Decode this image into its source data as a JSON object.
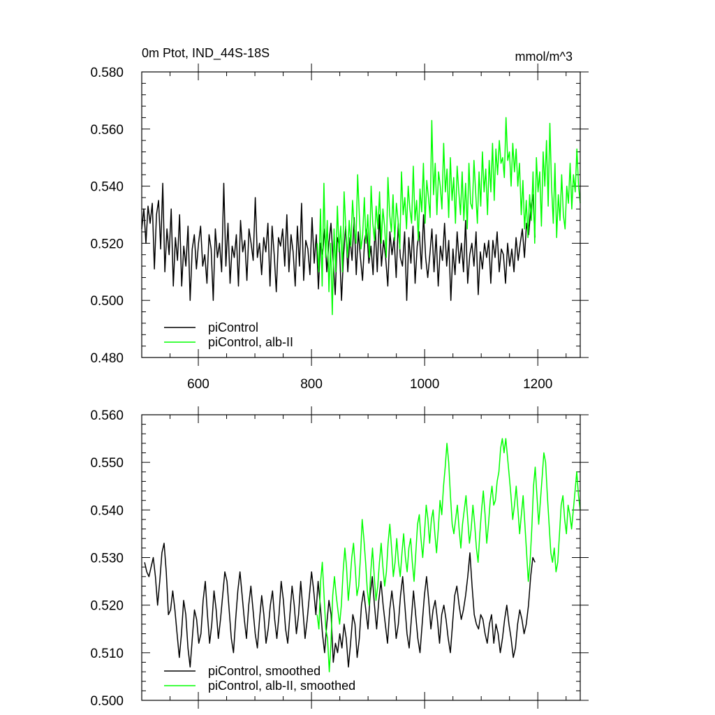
{
  "chart_data": [
    {
      "type": "line",
      "title": "0m Ptot, IND_44S-18S",
      "units": "mmol/m^3",
      "xlim": [
        500,
        1275
      ],
      "ylim": [
        0.48,
        0.58
      ],
      "xticks": [
        600,
        800,
        1000,
        1200
      ],
      "xtick_labels": [
        "600",
        "800",
        "1000",
        "1200"
      ],
      "yticks": [
        0.48,
        0.5,
        0.52,
        0.54,
        0.56,
        0.58
      ],
      "ytick_labels": [
        "0.480",
        "0.500",
        "0.520",
        "0.540",
        "0.560",
        "0.580"
      ],
      "legend_position": "bottom-left",
      "series": [
        {
          "name": "piControl",
          "color": "#000000",
          "x_start": 500,
          "x_end": 1195,
          "values": [
            0.525,
            0.532,
            0.52,
            0.533,
            0.527,
            0.534,
            0.511,
            0.53,
            0.535,
            0.518,
            0.541,
            0.51,
            0.525,
            0.516,
            0.532,
            0.505,
            0.522,
            0.514,
            0.53,
            0.505,
            0.519,
            0.512,
            0.526,
            0.5,
            0.518,
            0.523,
            0.511,
            0.52,
            0.526,
            0.512,
            0.516,
            0.506,
            0.523,
            0.518,
            0.5,
            0.525,
            0.515,
            0.52,
            0.51,
            0.541,
            0.512,
            0.527,
            0.506,
            0.519,
            0.515,
            0.523,
            0.505,
            0.528,
            0.517,
            0.521,
            0.507,
            0.525,
            0.52,
            0.514,
            0.536,
            0.515,
            0.52,
            0.509,
            0.522,
            0.517,
            0.527,
            0.505,
            0.526,
            0.516,
            0.503,
            0.522,
            0.519,
            0.525,
            0.512,
            0.53,
            0.51,
            0.523,
            0.517,
            0.505,
            0.526,
            0.512,
            0.534,
            0.507,
            0.521,
            0.518,
            0.509,
            0.529,
            0.513,
            0.523,
            0.504,
            0.52,
            0.516,
            0.525,
            0.51,
            0.52,
            0.527,
            0.514,
            0.502,
            0.522,
            0.519,
            0.5,
            0.516,
            0.526,
            0.51,
            0.522,
            0.514,
            0.529,
            0.509,
            0.524,
            0.515,
            0.507,
            0.521,
            0.525,
            0.513,
            0.519,
            0.509,
            0.526,
            0.51,
            0.53,
            0.512,
            0.521,
            0.515,
            0.505,
            0.524,
            0.516,
            0.522,
            0.508,
            0.527,
            0.515,
            0.512,
            0.524,
            0.5,
            0.522,
            0.513,
            0.526,
            0.506,
            0.519,
            0.524,
            0.511,
            0.53,
            0.515,
            0.508,
            0.516,
            0.525,
            0.51,
            0.523,
            0.505,
            0.519,
            0.514,
            0.527,
            0.512,
            0.521,
            0.5,
            0.518,
            0.509,
            0.524,
            0.513,
            0.52,
            0.51,
            0.528,
            0.506,
            0.516,
            0.52,
            0.512,
            0.524,
            0.502,
            0.517,
            0.511,
            0.52,
            0.515,
            0.521,
            0.506,
            0.521,
            0.515,
            0.524,
            0.51,
            0.518,
            0.516,
            0.506,
            0.52,
            0.512,
            0.518,
            0.51,
            0.522,
            0.514,
            0.52,
            0.525,
            0.515,
            0.527,
            0.523,
            0.532,
            0.537,
            0.522
          ]
        },
        {
          "name": "piControl, alb-II",
          "color": "#00ff00",
          "x_start": 810,
          "x_end": 1275,
          "values": [
            0.52,
            0.51,
            0.532,
            0.505,
            0.541,
            0.515,
            0.528,
            0.503,
            0.52,
            0.495,
            0.525,
            0.51,
            0.533,
            0.517,
            0.526,
            0.51,
            0.538,
            0.525,
            0.515,
            0.528,
            0.519,
            0.535,
            0.526,
            0.52,
            0.544,
            0.53,
            0.518,
            0.523,
            0.536,
            0.52,
            0.53,
            0.515,
            0.54,
            0.527,
            0.521,
            0.533,
            0.525,
            0.538,
            0.52,
            0.532,
            0.526,
            0.515,
            0.543,
            0.53,
            0.524,
            0.537,
            0.521,
            0.534,
            0.528,
            0.518,
            0.545,
            0.53,
            0.536,
            0.525,
            0.54,
            0.532,
            0.527,
            0.547,
            0.528,
            0.535,
            0.521,
            0.539,
            0.531,
            0.548,
            0.527,
            0.542,
            0.536,
            0.529,
            0.563,
            0.537,
            0.548,
            0.53,
            0.545,
            0.54,
            0.532,
            0.555,
            0.538,
            0.546,
            0.529,
            0.55,
            0.535,
            0.543,
            0.527,
            0.547,
            0.538,
            0.53,
            0.545,
            0.528,
            0.541,
            0.525,
            0.548,
            0.534,
            0.532,
            0.549,
            0.538,
            0.527,
            0.545,
            0.533,
            0.552,
            0.538,
            0.546,
            0.53,
            0.549,
            0.538,
            0.555,
            0.535,
            0.553,
            0.544,
            0.556,
            0.548,
            0.55,
            0.543,
            0.564,
            0.549,
            0.552,
            0.54,
            0.555,
            0.545,
            0.553,
            0.54,
            0.548,
            0.53,
            0.542,
            0.525,
            0.535,
            0.522,
            0.537,
            0.528,
            0.545,
            0.52,
            0.55,
            0.538,
            0.545,
            0.526,
            0.552,
            0.54,
            0.556,
            0.533,
            0.562,
            0.54,
            0.527,
            0.548,
            0.522,
            0.537,
            0.528,
            0.544,
            0.53,
            0.525,
            0.54,
            0.534,
            0.548,
            0.532,
            0.544,
            0.538,
            0.553,
            0.54,
            0.534
          ]
        }
      ]
    },
    {
      "type": "line",
      "xlim": [
        500,
        1275
      ],
      "ylim": [
        0.5,
        0.56
      ],
      "xticks": [
        600,
        800,
        1000,
        1200
      ],
      "yticks": [
        0.5,
        0.51,
        0.52,
        0.53,
        0.54,
        0.55,
        0.56
      ],
      "ytick_labels": [
        "0.500",
        "0.510",
        "0.520",
        "0.530",
        "0.540",
        "0.550",
        "0.560"
      ],
      "legend_position": "bottom-left",
      "series": [
        {
          "name": "piControl, smoothed",
          "color": "#000000",
          "x_start": 505,
          "x_end": 1195,
          "values": [
            0.529,
            0.527,
            0.526,
            0.528,
            0.53,
            0.526,
            0.52,
            0.525,
            0.531,
            0.533,
            0.527,
            0.518,
            0.519,
            0.523,
            0.519,
            0.514,
            0.509,
            0.514,
            0.521,
            0.518,
            0.511,
            0.507,
            0.513,
            0.519,
            0.517,
            0.512,
            0.514,
            0.521,
            0.525,
            0.518,
            0.512,
            0.516,
            0.523,
            0.519,
            0.513,
            0.517,
            0.522,
            0.527,
            0.525,
            0.519,
            0.513,
            0.51,
            0.517,
            0.523,
            0.527,
            0.522,
            0.517,
            0.513,
            0.52,
            0.524,
            0.519,
            0.514,
            0.511,
            0.517,
            0.522,
            0.518,
            0.512,
            0.515,
            0.52,
            0.523,
            0.517,
            0.513,
            0.518,
            0.525,
            0.521,
            0.515,
            0.512,
            0.518,
            0.524,
            0.52,
            0.514,
            0.518,
            0.525,
            0.519,
            0.513,
            0.517,
            0.522,
            0.527,
            0.523,
            0.518,
            0.525,
            0.52,
            0.514,
            0.51,
            0.516,
            0.521,
            0.518,
            0.508,
            0.512,
            0.51,
            0.514,
            0.511,
            0.516,
            0.513,
            0.507,
            0.512,
            0.518,
            0.516,
            0.509,
            0.513,
            0.52,
            0.523,
            0.519,
            0.515,
            0.522,
            0.526,
            0.52,
            0.515,
            0.521,
            0.525,
            0.52,
            0.516,
            0.512,
            0.519,
            0.523,
            0.519,
            0.513,
            0.516,
            0.522,
            0.526,
            0.52,
            0.514,
            0.511,
            0.517,
            0.523,
            0.518,
            0.513,
            0.51,
            0.516,
            0.522,
            0.526,
            0.521,
            0.515,
            0.519,
            0.521,
            0.517,
            0.512,
            0.518,
            0.52,
            0.517,
            0.513,
            0.51,
            0.516,
            0.522,
            0.524,
            0.52,
            0.517,
            0.519,
            0.522,
            0.526,
            0.531,
            0.524,
            0.518,
            0.516,
            0.515,
            0.518,
            0.517,
            0.514,
            0.512,
            0.516,
            0.518,
            0.512,
            0.516,
            0.514,
            0.51,
            0.513,
            0.517,
            0.52,
            0.516,
            0.513,
            0.509,
            0.511,
            0.516,
            0.519,
            0.517,
            0.514,
            0.516,
            0.52,
            0.526,
            0.53,
            0.529
          ]
        },
        {
          "name": "piControl, alb-II, smoothed",
          "color": "#00ff00",
          "x_start": 810,
          "x_end": 1275,
          "values": [
            0.518,
            0.515,
            0.525,
            0.529,
            0.522,
            0.515,
            0.513,
            0.506,
            0.512,
            0.522,
            0.526,
            0.522,
            0.519,
            0.516,
            0.52,
            0.527,
            0.532,
            0.528,
            0.521,
            0.525,
            0.53,
            0.533,
            0.528,
            0.522,
            0.524,
            0.53,
            0.538,
            0.534,
            0.529,
            0.523,
            0.52,
            0.527,
            0.532,
            0.526,
            0.521,
            0.524,
            0.529,
            0.533,
            0.528,
            0.524,
            0.527,
            0.533,
            0.537,
            0.532,
            0.526,
            0.529,
            0.534,
            0.529,
            0.526,
            0.531,
            0.535,
            0.53,
            0.527,
            0.532,
            0.534,
            0.529,
            0.525,
            0.531,
            0.537,
            0.539,
            0.534,
            0.53,
            0.535,
            0.541,
            0.538,
            0.533,
            0.538,
            0.54,
            0.535,
            0.531,
            0.536,
            0.542,
            0.539,
            0.545,
            0.549,
            0.554,
            0.55,
            0.543,
            0.537,
            0.535,
            0.538,
            0.541,
            0.536,
            0.532,
            0.537,
            0.54,
            0.543,
            0.538,
            0.533,
            0.536,
            0.541,
            0.537,
            0.532,
            0.529,
            0.535,
            0.54,
            0.544,
            0.539,
            0.533,
            0.537,
            0.542,
            0.545,
            0.541,
            0.542,
            0.546,
            0.548,
            0.553,
            0.555,
            0.552,
            0.555,
            0.551,
            0.547,
            0.543,
            0.538,
            0.541,
            0.545,
            0.54,
            0.535,
            0.539,
            0.543,
            0.537,
            0.531,
            0.525,
            0.529,
            0.536,
            0.545,
            0.549,
            0.543,
            0.537,
            0.542,
            0.547,
            0.552,
            0.55,
            0.543,
            0.537,
            0.531,
            0.529,
            0.532,
            0.527,
            0.529,
            0.535,
            0.541,
            0.543,
            0.538,
            0.535,
            0.541,
            0.539,
            0.536,
            0.54,
            0.544,
            0.548,
            0.543,
            0.54
          ]
        }
      ]
    }
  ]
}
